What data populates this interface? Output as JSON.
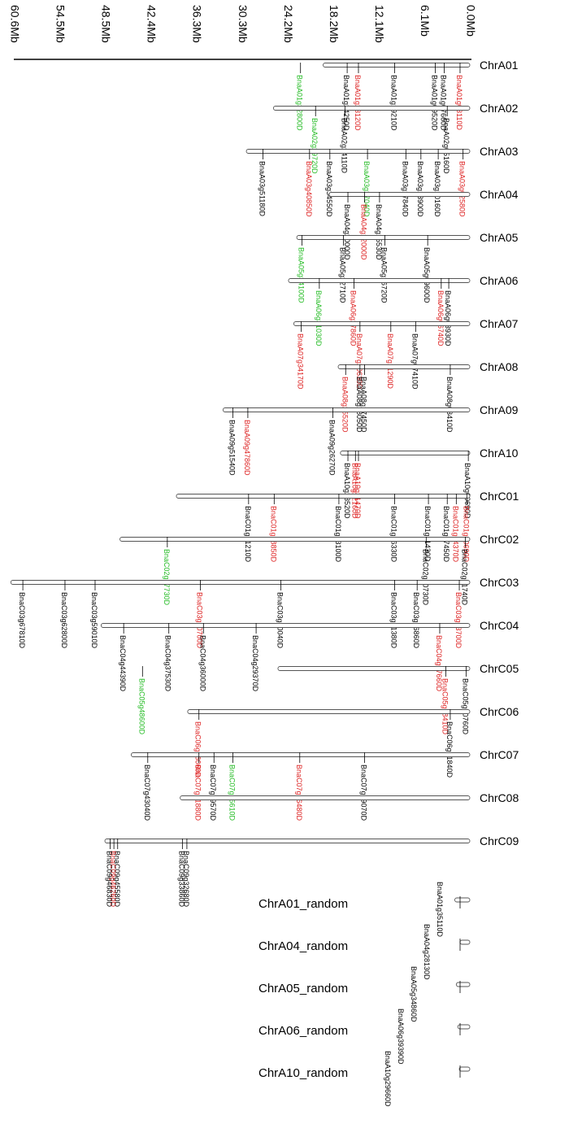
{
  "colors": {
    "red": "#dd2020",
    "green": "#22bb22",
    "black": "#000000",
    "chrom_fill": "#ffffff",
    "chrom_stroke": "#555555"
  },
  "axis": {
    "ticks": [
      "0.0Mb",
      "6.1Mb",
      "12.1Mb",
      "18.2Mb",
      "24.2Mb",
      "30.3Mb",
      "36.3Mb",
      "42.4Mb",
      "48.5Mb",
      "54.5Mb",
      "60.6Mb"
    ],
    "max_mb": 60.6
  },
  "chromosomes": [
    {
      "name": "ChrA01",
      "length_mb": 19.5,
      "genes": [
        {
          "id": "BnaA01g03110D",
          "mb": 1.3,
          "color": "red"
        },
        {
          "id": "BnaA01g07660D",
          "mb": 3.4,
          "color": "black"
        },
        {
          "id": "BnaA01g09520D",
          "mb": 4.6,
          "color": "black"
        },
        {
          "id": "BnaA01g19210D",
          "mb": 10.0,
          "color": "black"
        },
        {
          "id": "BnaA01g23120D",
          "mb": 14.8,
          "color": "red"
        },
        {
          "id": "BnaA01g24250D",
          "mb": 16.3,
          "color": "black"
        },
        {
          "id": "BnaA01g32800D",
          "mb": 22.5,
          "color": "green"
        }
      ]
    },
    {
      "name": "ChrA02",
      "length_mb": 26.1,
      "genes": [
        {
          "id": "BnaA02g05160D",
          "mb": 3.0,
          "color": "black"
        },
        {
          "id": "BnaA02g24110D",
          "mb": 16.6,
          "color": "black"
        },
        {
          "id": "BnaA02g29720D",
          "mb": 20.5,
          "color": "green"
        }
      ]
    },
    {
      "name": "ChrA03",
      "length_mb": 29.7,
      "genes": [
        {
          "id": "BnaA03g02580D",
          "mb": 0.9,
          "color": "red"
        },
        {
          "id": "BnaA03g10160D",
          "mb": 4.2,
          "color": "black"
        },
        {
          "id": "BnaA03g13900D",
          "mb": 6.5,
          "color": "black"
        },
        {
          "id": "BnaA03g17840D",
          "mb": 8.5,
          "color": "black"
        },
        {
          "id": "BnaA03g27040D",
          "mb": 13.6,
          "color": "green"
        },
        {
          "id": "BnaA03g34550D",
          "mb": 18.6,
          "color": "black"
        },
        {
          "id": "BnaA03g40850D",
          "mb": 21.3,
          "color": "red"
        },
        {
          "id": "BnaA03g51180D",
          "mb": 27.5,
          "color": "black"
        }
      ]
    },
    {
      "name": "ChrA04",
      "length_mb": 18.7,
      "genes": [
        {
          "id": "BnaA04g12000D",
          "mb": 14.0,
          "color": "red"
        },
        {
          "id": "BnaA04g15530D",
          "mb": 12.0,
          "color": "black"
        },
        {
          "id": "BnaA04g20000D",
          "mb": 16.2,
          "color": "black"
        }
      ]
    },
    {
      "name": "ChrA05",
      "length_mb": 23.0,
      "genes": [
        {
          "id": "BnaA05g09600D",
          "mb": 5.6,
          "color": "black"
        },
        {
          "id": "BnaA05g16720D",
          "mb": 11.3,
          "color": "black"
        },
        {
          "id": "BnaA05g22710D",
          "mb": 16.8,
          "color": "black"
        },
        {
          "id": "BnaA05g34100D",
          "mb": 22.3,
          "color": "green"
        }
      ]
    },
    {
      "name": "ChrA06",
      "length_mb": 24.1,
      "genes": [
        {
          "id": "BnaA06g03930D",
          "mb": 2.8,
          "color": "black"
        },
        {
          "id": "BnaA06g06740D",
          "mb": 3.8,
          "color": "red"
        },
        {
          "id": "BnaA06g27860D",
          "mb": 15.4,
          "color": "red"
        },
        {
          "id": "BnaA06g31030D",
          "mb": 20.0,
          "color": "green"
        }
      ]
    },
    {
      "name": "ChrA07",
      "length_mb": 23.4,
      "genes": [
        {
          "id": "BnaA07g07410D",
          "mb": 7.2,
          "color": "black"
        },
        {
          "id": "BnaA07g11290D",
          "mb": 10.5,
          "color": "red"
        },
        {
          "id": "BnaA07g20630D",
          "mb": 14.6,
          "color": "red"
        },
        {
          "id": "BnaA07g34170D",
          "mb": 22.4,
          "color": "red"
        }
      ]
    },
    {
      "name": "ChrA08",
      "length_mb": 17.5,
      "genes": [
        {
          "id": "BnaA08g03410D",
          "mb": 2.6,
          "color": "black"
        },
        {
          "id": "BnaA08g17450D",
          "mb": 14.0,
          "color": "black"
        },
        {
          "id": "BnaA08g18050D",
          "mb": 14.6,
          "color": "black"
        },
        {
          "id": "BnaA08g25520D",
          "mb": 16.5,
          "color": "red"
        }
      ]
    },
    {
      "name": "ChrA09",
      "length_mb": 32.8,
      "genes": [
        {
          "id": "BnaA09g26270D",
          "mb": 18.2,
          "color": "black"
        },
        {
          "id": "BnaA09g47860D",
          "mb": 29.5,
          "color": "red"
        },
        {
          "id": "BnaA09g51540D",
          "mb": 31.5,
          "color": "black"
        }
      ]
    },
    {
      "name": "ChrA10",
      "length_mb": 17.2,
      "genes": [
        {
          "id": "BnaA10g00690D",
          "mb": 0.2,
          "color": "black"
        },
        {
          "id": "BnaA10g21470D",
          "mb": 14.8,
          "color": "red"
        },
        {
          "id": "BnaA10g22160D",
          "mb": 15.2,
          "color": "red"
        },
        {
          "id": "BnaA10g23520D",
          "mb": 16.2,
          "color": "black"
        }
      ]
    },
    {
      "name": "ChrC01",
      "length_mb": 39.0,
      "genes": [
        {
          "id": "BnaC01g00690D",
          "mb": 0.4,
          "color": "red"
        },
        {
          "id": "BnaC01g04370D",
          "mb": 1.8,
          "color": "red"
        },
        {
          "id": "BnaC01g07450D",
          "mb": 3.0,
          "color": "black"
        },
        {
          "id": "BnaC01g11430D",
          "mb": 5.5,
          "color": "black"
        },
        {
          "id": "BnaC01g16330D",
          "mb": 10.0,
          "color": "black"
        },
        {
          "id": "BnaC01g23100D",
          "mb": 17.4,
          "color": "black"
        },
        {
          "id": "BnaC01g28850D",
          "mb": 26.0,
          "color": "red"
        },
        {
          "id": "BnaC01g31210D",
          "mb": 29.4,
          "color": "black"
        }
      ]
    },
    {
      "name": "ChrC02",
      "length_mb": 46.5,
      "genes": [
        {
          "id": "BnaC02g01740D",
          "mb": 0.6,
          "color": "black"
        },
        {
          "id": "BnaC02g10730D",
          "mb": 5.8,
          "color": "black"
        },
        {
          "id": "BnaC02g37730D",
          "mb": 40.2,
          "color": "green"
        }
      ]
    },
    {
      "name": "ChrC03",
      "length_mb": 61.0,
      "genes": [
        {
          "id": "BnaC03g03700D",
          "mb": 1.4,
          "color": "red"
        },
        {
          "id": "BnaC03g16860D",
          "mb": 7.0,
          "color": "black"
        },
        {
          "id": "BnaC03g21380D",
          "mb": 10.0,
          "color": "black"
        },
        {
          "id": "BnaC03g40040D",
          "mb": 25.1,
          "color": "black"
        },
        {
          "id": "BnaC03g50700D",
          "mb": 35.8,
          "color": "red"
        },
        {
          "id": "BnaC03g59010D",
          "mb": 49.8,
          "color": "black"
        },
        {
          "id": "BnaC03g62800D",
          "mb": 53.8,
          "color": "black"
        },
        {
          "id": "BnaC03g67810D",
          "mb": 59.4,
          "color": "black"
        }
      ]
    },
    {
      "name": "ChrC04",
      "length_mb": 49.0,
      "genes": [
        {
          "id": "BnaC04g07660D",
          "mb": 4.0,
          "color": "red"
        },
        {
          "id": "BnaC04g29370D",
          "mb": 28.4,
          "color": "black"
        },
        {
          "id": "BnaC04g36000D",
          "mb": 35.4,
          "color": "black"
        },
        {
          "id": "BnaC04g37530D",
          "mb": 40.0,
          "color": "black"
        },
        {
          "id": "BnaC04g44390D",
          "mb": 46.0,
          "color": "black"
        }
      ]
    },
    {
      "name": "ChrC05",
      "length_mb": 25.5,
      "genes": [
        {
          "id": "BnaC05g00760D",
          "mb": 0.5,
          "color": "black"
        },
        {
          "id": "BnaC05g08410D",
          "mb": 3.2,
          "color": "red"
        },
        {
          "id": "BnaC05g48600D",
          "mb": 43.5,
          "color": "green"
        }
      ]
    },
    {
      "name": "ChrC06",
      "length_mb": 37.5,
      "genes": [
        {
          "id": "BnaC06g01840D",
          "mb": 2.6,
          "color": "black"
        },
        {
          "id": "BnaC06g36060D",
          "mb": 36.0,
          "color": "red"
        }
      ]
    },
    {
      "name": "ChrC07",
      "length_mb": 45.0,
      "genes": [
        {
          "id": "BnaC07g09070D",
          "mb": 14.0,
          "color": "black"
        },
        {
          "id": "BnaC07g16480D",
          "mb": 22.6,
          "color": "red"
        },
        {
          "id": "BnaC07g25610D",
          "mb": 31.5,
          "color": "green"
        },
        {
          "id": "BnaC07g29570D",
          "mb": 34.0,
          "color": "black"
        },
        {
          "id": "BnaC07g31880D",
          "mb": 36.0,
          "color": "red"
        },
        {
          "id": "BnaC07g43040D",
          "mb": 42.8,
          "color": "black"
        }
      ]
    },
    {
      "name": "ChrC08",
      "length_mb": 38.5,
      "genes": []
    },
    {
      "name": "ChrC09",
      "length_mb": 48.5,
      "genes": [
        {
          "id": "BnaC09g32680D",
          "mb": 37.6,
          "color": "black"
        },
        {
          "id": "BnaC09g33860D",
          "mb": 38.2,
          "color": "black"
        },
        {
          "id": "BnaC09g45580D",
          "mb": 46.8,
          "color": "black"
        },
        {
          "id": "BnaC09g46260D",
          "mb": 47.3,
          "color": "red"
        },
        {
          "id": "BnaC09g46830D",
          "mb": 47.8,
          "color": "black"
        }
      ]
    }
  ],
  "random_scaffolds": [
    {
      "name": "ChrA01_random",
      "length_mb": 2.0,
      "gene": "BnaA01g35110D"
    },
    {
      "name": "ChrA04_random",
      "length_mb": 1.3,
      "gene": "BnaA04g28130D"
    },
    {
      "name": "ChrA05_random",
      "length_mb": 1.8,
      "gene": "BnaA05g34860D"
    },
    {
      "name": "ChrA06_random",
      "length_mb": 1.6,
      "gene": "BnaA06g39390D"
    },
    {
      "name": "ChrA10_random",
      "length_mb": 1.4,
      "gene": "BnaA10g29660D"
    }
  ]
}
